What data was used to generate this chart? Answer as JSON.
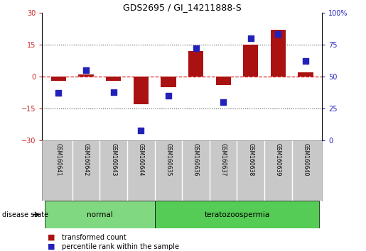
{
  "title": "GDS2695 / GI_14211888-S",
  "samples": [
    "GSM160641",
    "GSM160642",
    "GSM160643",
    "GSM160644",
    "GSM160635",
    "GSM160636",
    "GSM160637",
    "GSM160638",
    "GSM160639",
    "GSM160640"
  ],
  "transformed_count": [
    -2,
    1,
    -2,
    -13,
    -5,
    12,
    -4,
    15,
    22,
    2
  ],
  "percentile_rank": [
    37,
    55,
    38,
    8,
    35,
    72,
    30,
    80,
    83,
    62
  ],
  "disease_groups": [
    {
      "label": "normal",
      "start": 0,
      "end": 4,
      "color": "#80D980"
    },
    {
      "label": "teratozoospermia",
      "start": 4,
      "end": 10,
      "color": "#55CC55"
    }
  ],
  "left_ylim": [
    -30,
    30
  ],
  "left_yticks": [
    -30,
    -15,
    0,
    15,
    30
  ],
  "right_ylim": [
    0,
    100
  ],
  "right_yticks": [
    0,
    25,
    50,
    75,
    100
  ],
  "bar_color": "#AA1111",
  "dot_color": "#2222BB",
  "zero_line_color": "#DD2222",
  "dotted_line_color": "#555555",
  "bg_color": "#FFFFFF",
  "label_bg": "#C8C8C8",
  "legend_tc_label": "transformed count",
  "legend_pr_label": "percentile rank within the sample",
  "disease_label": "disease state",
  "bar_width": 0.55,
  "dot_size": 35,
  "n": 10
}
